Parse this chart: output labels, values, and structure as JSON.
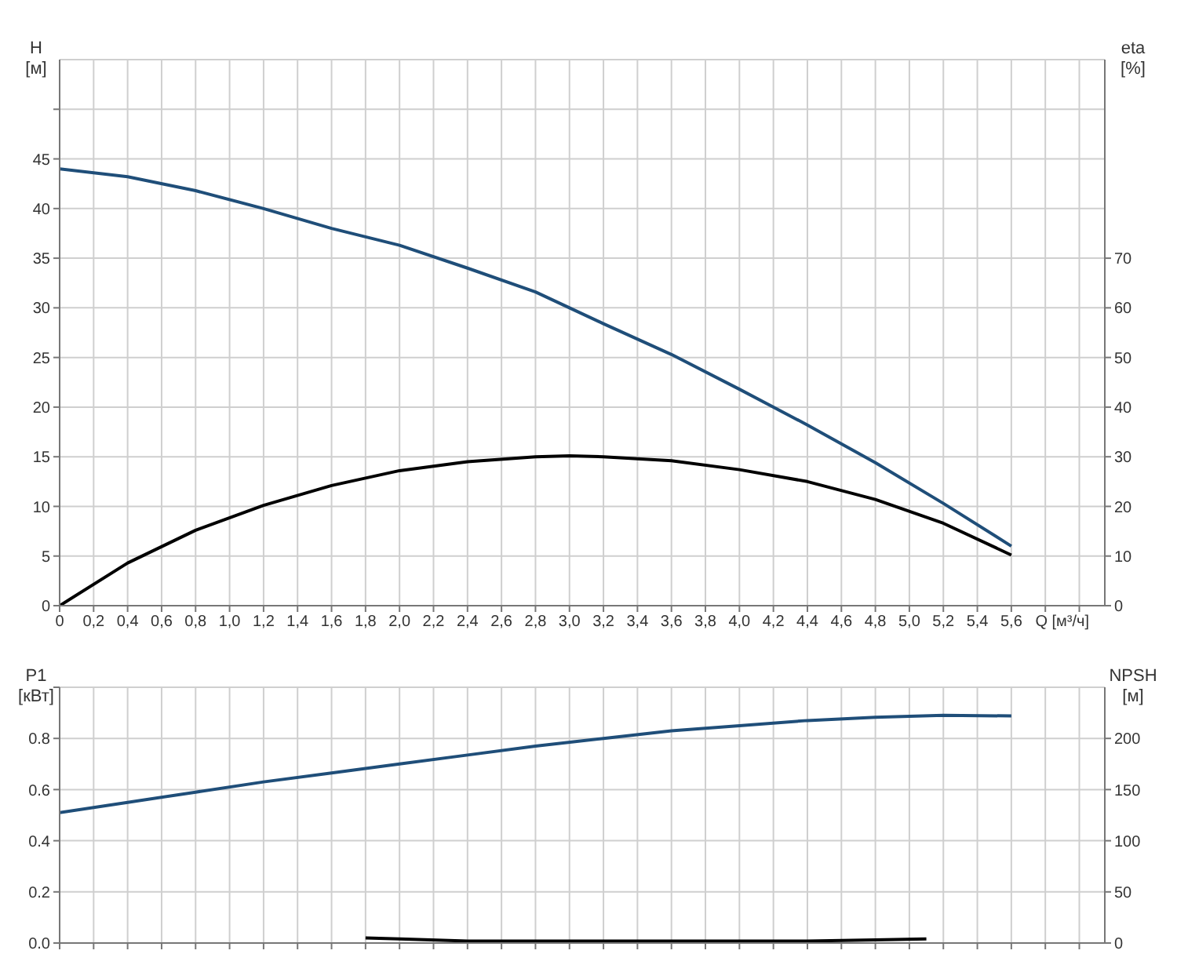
{
  "chart_data": [
    {
      "type": "line",
      "xlabel": "Q [м³/ч]",
      "ylabel": "H [м]",
      "y2label": "eta [%]",
      "x": [
        0,
        0.4,
        0.8,
        1.2,
        1.6,
        2.0,
        2.4,
        2.8,
        3.0,
        3.2,
        3.6,
        4.0,
        4.4,
        4.8,
        5.2,
        5.6
      ],
      "series": [
        {
          "color": "#1f4e79",
          "values": [
            44,
            43.2,
            41.8,
            40,
            38,
            36.3,
            34,
            31.6,
            30,
            28.4,
            25.3,
            21.8,
            18.2,
            14.4,
            10.3,
            6
          ]
        },
        {
          "color": "#000000",
          "axis": "y2",
          "values": [
            0,
            8.6,
            15.2,
            20.2,
            24.2,
            27.2,
            29,
            30,
            30.2,
            30,
            29.2,
            27.4,
            25,
            21.4,
            16.6,
            10.2
          ]
        }
      ],
      "xlim": [
        0,
        6.15
      ],
      "xticks": [
        0,
        {
          "value": 0.2,
          "label": "0,2"
        },
        {
          "value": 0.4,
          "label": "0,4"
        },
        {
          "value": 0.6,
          "label": "0,6"
        },
        {
          "value": 0.8,
          "label": "0,8"
        },
        {
          "value": 1.0,
          "label": "1,0"
        },
        {
          "value": 1.2,
          "label": "1,2"
        },
        {
          "value": 1.4,
          "label": "1,4"
        },
        {
          "value": 1.6,
          "label": "1,6"
        },
        {
          "value": 1.8,
          "label": "1,8"
        },
        {
          "value": 2.0,
          "label": "2,0"
        },
        {
          "value": 2.2,
          "label": "2,2"
        },
        {
          "value": 2.4,
          "label": "2,4"
        },
        {
          "value": 2.6,
          "label": "2,6"
        },
        {
          "value": 2.8,
          "label": "2,8"
        },
        {
          "value": 3.0,
          "label": "3,0"
        },
        {
          "value": 3.2,
          "label": "3,2"
        },
        {
          "value": 3.4,
          "label": "3,4"
        },
        {
          "value": 3.6,
          "label": "3,6"
        },
        {
          "value": 3.8,
          "label": "3,8"
        },
        {
          "value": 4.0,
          "label": "4,0"
        },
        {
          "value": 4.2,
          "label": "4,2"
        },
        {
          "value": 4.4,
          "label": "4,4"
        },
        {
          "value": 4.6,
          "label": "4,6"
        },
        {
          "value": 4.8,
          "label": "4,8"
        },
        {
          "value": 5.0,
          "label": "5,0"
        },
        {
          "value": 5.2,
          "label": "5,2"
        },
        {
          "value": 5.4,
          "label": "5,4"
        },
        {
          "value": 5.6,
          "label": "5,6"
        },
        {
          "value": 5.8,
          "label": null
        },
        {
          "value": 6.0,
          "label": null
        }
      ],
      "ylim": [
        0,
        55
      ],
      "yticks": [
        0,
        5,
        10,
        15,
        20,
        25,
        30,
        35,
        40,
        45,
        {
          "value": 50,
          "label": null
        }
      ],
      "y2lim": [
        0,
        110
      ],
      "y2ticks": [
        0,
        10,
        20,
        30,
        40,
        50,
        60,
        70
      ],
      "grid": true,
      "legend": false,
      "marker": "none",
      "line_style": "solid"
    },
    {
      "type": "line",
      "ylabel": "P1 [кВт]",
      "y2label": "NPSH [м]",
      "x": [
        0,
        0.4,
        0.8,
        1.2,
        1.6,
        2.0,
        2.4,
        2.8,
        3.2,
        3.6,
        4.0,
        4.4,
        4.8,
        5.2,
        5.6
      ],
      "series": [
        {
          "color": "#1f4e79",
          "values": [
            0.51,
            0.55,
            0.59,
            0.63,
            0.665,
            0.7,
            0.735,
            0.77,
            0.8,
            0.83,
            0.85,
            0.87,
            0.883,
            0.89,
            0.888
          ]
        },
        {
          "color": "#000000",
          "axis": "y2",
          "x": [
            1.8,
            2.0,
            2.4,
            2.8,
            3.2,
            3.6,
            4.0,
            4.4,
            4.8,
            5.1
          ],
          "values": [
            5,
            4,
            2,
            2,
            2,
            2,
            2,
            2,
            3,
            4
          ]
        }
      ],
      "xlim": [
        0,
        6.15
      ],
      "xticks": [
        0,
        0.2,
        0.4,
        0.6,
        0.8,
        1.0,
        1.2,
        1.4,
        1.6,
        1.8,
        2.0,
        2.2,
        2.4,
        2.6,
        2.8,
        3.0,
        3.2,
        3.4,
        3.6,
        3.8,
        4.0,
        4.2,
        4.4,
        4.6,
        4.8,
        5.0,
        5.2,
        5.4,
        5.6,
        5.8,
        6.0
      ],
      "ylim": [
        0,
        1.0
      ],
      "yticks": [
        {
          "value": 0,
          "label": "0.0"
        },
        0.2,
        0.4,
        0.6,
        0.8,
        {
          "value": 1.0,
          "label": null
        }
      ],
      "y2lim": [
        0,
        250
      ],
      "y2ticks": [
        0,
        50,
        100,
        150,
        200
      ],
      "tick_labels": "y",
      "grid": true,
      "legend": false,
      "marker": "none",
      "line_style": "solid"
    }
  ]
}
